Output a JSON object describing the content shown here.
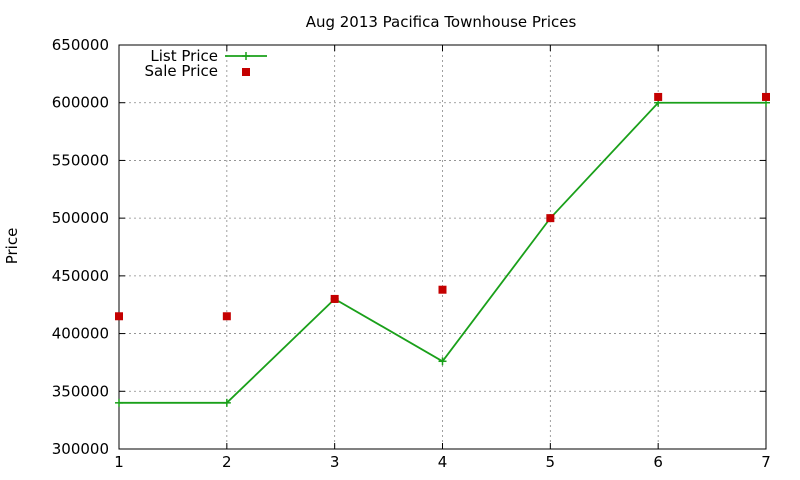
{
  "chart_data": {
    "type": "line",
    "title": "Aug 2013 Pacifica Townhouse Prices",
    "xlabel": "",
    "ylabel": "Price",
    "xlim": [
      1,
      7
    ],
    "ylim": [
      300000,
      650000
    ],
    "x_ticks": [
      "1",
      "2",
      "3",
      "4",
      "5",
      "6",
      "7"
    ],
    "y_ticks": [
      "300000",
      "350000",
      "400000",
      "450000",
      "500000",
      "550000",
      "600000",
      "650000"
    ],
    "grid": true,
    "legend_position": "top-left",
    "series": [
      {
        "name": "List Price",
        "style": "line+cross",
        "color": "#1aa01a",
        "points": [
          [
            1,
            340000
          ],
          [
            2,
            340000
          ],
          [
            3,
            430000
          ],
          [
            4,
            376000
          ],
          [
            5,
            500000
          ],
          [
            6,
            600000
          ],
          [
            7,
            600000
          ]
        ]
      },
      {
        "name": "Sale Price",
        "style": "square",
        "color": "#c40000",
        "points": [
          [
            1,
            415000
          ],
          [
            2,
            415000
          ],
          [
            3,
            430000
          ],
          [
            4,
            438000
          ],
          [
            5,
            500000
          ],
          [
            6,
            605000
          ],
          [
            7,
            605000
          ]
        ]
      }
    ]
  }
}
